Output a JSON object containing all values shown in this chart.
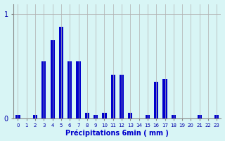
{
  "values": [
    0.03,
    0.0,
    0.03,
    0.55,
    0.75,
    0.88,
    0.55,
    0.55,
    0.05,
    0.03,
    0.05,
    0.42,
    0.42,
    0.05,
    0.0,
    0.03,
    0.35,
    0.38,
    0.03,
    0.0,
    0.0,
    0.03,
    0.0,
    0.03
  ],
  "xlabel": "Précipitations 6min ( mm )",
  "ylim": [
    0,
    1.1
  ],
  "yticks": [
    0,
    1
  ],
  "background_color": "#d8f5f5",
  "bar_color": "#0000cc",
  "grid_color": "#b0b0b0",
  "n_bars": 24
}
